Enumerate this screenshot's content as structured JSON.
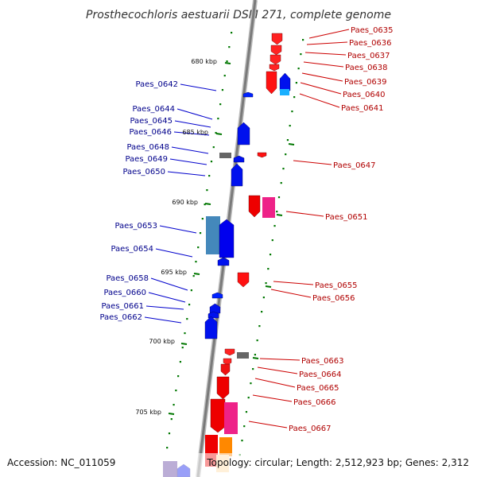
{
  "title": "Prosthecochloris aestuarii DSM 271, complete genome",
  "footer": {
    "accession": "Accession: NC_011059",
    "topology": "Topology: circular; Length: 2,512,923 bp; Genes: 2,312"
  },
  "ticks": [
    "680 kbp",
    "685 kbp",
    "690 kbp",
    "695 kbp",
    "700 kbp",
    "705 kbp"
  ],
  "left_labels": [
    "Paes_0642",
    "Paes_0644",
    "Paes_0645",
    "Paes_0646",
    "Paes_0648",
    "Paes_0649",
    "Paes_0650",
    "Paes_0653",
    "Paes_0654",
    "Paes_0658",
    "Paes_0660",
    "Paes_0661",
    "Paes_0662"
  ],
  "right_labels": [
    "Paes_0635",
    "Paes_0636",
    "Paes_0637",
    "Paes_0638",
    "Paes_0639",
    "Paes_0640",
    "Paes_0641",
    "Paes_0647",
    "Paes_0651",
    "Paes_0655",
    "Paes_0656",
    "Paes_0663",
    "Paes_0664",
    "Paes_0665",
    "Paes_0666",
    "Paes_0667"
  ],
  "colors": {
    "forward_gene": "#ff0000",
    "reverse_gene": "#0000ff",
    "backbone": "#999999",
    "gc_dots": "#007700"
  }
}
